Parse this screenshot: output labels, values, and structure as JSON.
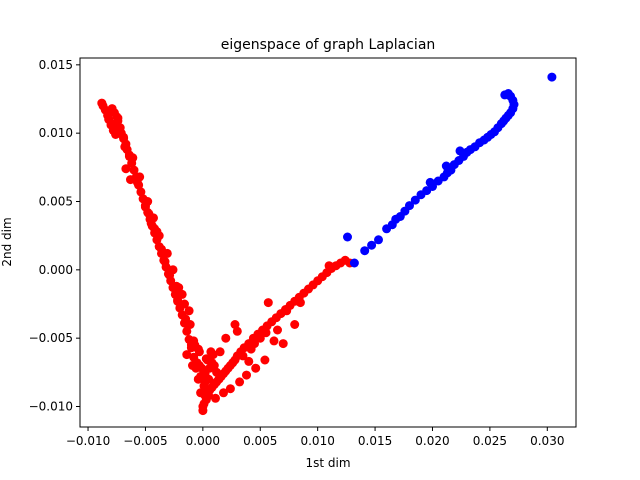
{
  "chart_data": {
    "type": "scatter",
    "title": "eigenspace of graph Laplacian",
    "xlabel": "1st dim",
    "ylabel": "2nd dim",
    "xlim": [
      -0.0107,
      0.0325
    ],
    "ylim": [
      -0.0115,
      0.0155
    ],
    "grid": false,
    "legend": "none",
    "x_ticks": [
      -0.01,
      -0.005,
      0.0,
      0.005,
      0.01,
      0.015,
      0.02,
      0.025,
      0.03
    ],
    "x_tick_labels": [
      "−0.010",
      "−0.005",
      "0.000",
      "0.005",
      "0.010",
      "0.015",
      "0.020",
      "0.025",
      "0.030"
    ],
    "y_ticks": [
      -0.01,
      -0.005,
      0.0,
      0.005,
      0.01,
      0.015
    ],
    "y_tick_labels": [
      "−0.010",
      "−0.005",
      "0.000",
      "0.005",
      "0.010",
      "0.015"
    ],
    "series": [
      {
        "color": "#ff0000",
        "x": [
          -0.0088,
          -0.0087,
          -0.0085,
          -0.0083,
          -0.0082,
          -0.008,
          -0.0078,
          -0.0076,
          -0.0079,
          -0.0077,
          -0.0075,
          -0.0074,
          -0.0072,
          -0.0071,
          -0.0069,
          -0.0067,
          -0.0066,
          -0.0064,
          -0.0062,
          -0.006,
          -0.0058,
          -0.0056,
          -0.0054,
          -0.0052,
          -0.005,
          -0.0048,
          -0.0046,
          -0.0044,
          -0.0042,
          -0.004,
          -0.0038,
          -0.0036,
          -0.0034,
          -0.0032,
          -0.003,
          -0.0028,
          -0.0026,
          -0.0024,
          -0.0022,
          -0.002,
          -0.0018,
          -0.0016,
          -0.0014,
          -0.0012,
          -0.001,
          -0.0008,
          -0.0006,
          -0.0004,
          -0.0002,
          0.0,
          -0.0074,
          -0.0069,
          -0.0061,
          -0.0055,
          -0.0048,
          -0.0043,
          -0.0038,
          -0.0031,
          -0.0026,
          -0.0021,
          -0.0016,
          -0.0011,
          -0.0007,
          -0.0003,
          -0.0076,
          -0.0073,
          -0.0068,
          -0.0064,
          -0.0057,
          -0.005,
          -0.0045,
          -0.0036,
          -0.0029,
          -0.0022,
          -0.0015,
          -0.0008,
          -0.0067,
          -0.0063,
          -0.0047,
          -0.0042,
          -0.004,
          -0.0033,
          -0.0023,
          -0.0018,
          -0.0012,
          -0.0004,
          0.0,
          0.0001,
          0.0003,
          0.0002,
          0.0004,
          0.0006,
          0.0008,
          0.001,
          0.0012,
          0.0014,
          0.0016,
          0.0018,
          0.002,
          0.0022,
          0.0024,
          0.0026,
          0.0028,
          0.003,
          0.0033,
          0.0036,
          0.004,
          0.0044,
          0.0048,
          0.0052,
          0.0056,
          0.006,
          0.0064,
          0.0068,
          0.0072,
          0.0076,
          0.008,
          0.0084,
          0.0088,
          0.0092,
          0.0096,
          0.01,
          0.0104,
          0.0108,
          0.0112,
          0.0116,
          0.012,
          0.0124,
          0.0085,
          0.011,
          0.0128,
          0.0057,
          0.0073,
          0.008,
          0.0065,
          0.0055,
          0.005,
          0.0045,
          0.0042,
          0.0028,
          0.003,
          0.002,
          0.0035,
          0.004,
          0.0062,
          0.0015,
          0.001,
          0.0012,
          0.0005,
          0.0006,
          0.0008,
          0.0001,
          0.0002,
          -0.0002,
          -0.0001,
          0.0003,
          0.0007,
          0.0009,
          0.0004,
          0.0002,
          -0.0005,
          -0.0003,
          -0.001,
          -0.0014,
          -0.0009,
          0.0005,
          0.0011,
          0.0018,
          0.0024,
          0.0032,
          0.0038,
          0.0046,
          0.0054,
          0.007
        ],
        "y": [
          0.0122,
          0.012,
          0.0117,
          0.0113,
          0.011,
          0.0106,
          0.0102,
          0.0099,
          0.0118,
          0.0115,
          0.0112,
          0.0109,
          0.0104,
          0.01,
          0.0096,
          0.0092,
          0.0088,
          0.0083,
          0.0078,
          0.0073,
          0.0068,
          0.0062,
          0.0057,
          0.0052,
          0.0047,
          0.0042,
          0.0037,
          0.0032,
          0.0027,
          0.0022,
          0.0017,
          0.0012,
          0.0007,
          0.0002,
          -0.0003,
          -0.0008,
          -0.0013,
          -0.0018,
          -0.0023,
          -0.0028,
          -0.0033,
          -0.0039,
          -0.0045,
          -0.0051,
          -0.0057,
          -0.0064,
          -0.0072,
          -0.008,
          -0.009,
          -0.01,
          0.0111,
          0.0097,
          0.0082,
          0.0068,
          0.005,
          0.0038,
          0.0025,
          0.0012,
          0.0,
          -0.0013,
          -0.0025,
          -0.004,
          -0.0055,
          -0.007,
          0.0107,
          0.01,
          0.009,
          0.0084,
          0.0064,
          0.0046,
          0.0034,
          0.0015,
          -0.0004,
          -0.0022,
          -0.0036,
          -0.0052,
          0.0074,
          0.0066,
          0.0041,
          0.003,
          0.0028,
          0.0006,
          -0.0012,
          -0.0018,
          -0.003,
          -0.0058,
          -0.0103,
          -0.0098,
          -0.0095,
          -0.0092,
          -0.009,
          -0.0088,
          -0.0086,
          -0.0084,
          -0.0082,
          -0.008,
          -0.0078,
          -0.0076,
          -0.0074,
          -0.0072,
          -0.007,
          -0.0068,
          -0.0066,
          -0.0063,
          -0.006,
          -0.0057,
          -0.0054,
          -0.005,
          -0.0047,
          -0.0044,
          -0.0041,
          -0.0038,
          -0.0035,
          -0.0032,
          -0.0029,
          -0.0026,
          -0.0023,
          -0.002,
          -0.0017,
          -0.0014,
          -0.0011,
          -0.0008,
          -0.0005,
          -0.0002,
          0.0001,
          0.0003,
          0.0005,
          0.0007,
          -0.0024,
          0.0003,
          0.0005,
          -0.0024,
          -0.003,
          -0.004,
          -0.0044,
          -0.0046,
          -0.005,
          -0.0054,
          -0.0058,
          -0.004,
          -0.0045,
          -0.005,
          -0.0063,
          -0.0067,
          -0.0052,
          -0.006,
          -0.007,
          -0.0075,
          -0.008,
          -0.0072,
          -0.0068,
          -0.0085,
          -0.0082,
          -0.0078,
          -0.0072,
          -0.0065,
          -0.006,
          -0.0062,
          -0.0066,
          -0.0076,
          -0.0068,
          -0.006,
          -0.0055,
          -0.0062,
          -0.007,
          -0.0092,
          -0.0094,
          -0.009,
          -0.0087,
          -0.0082,
          -0.0077,
          -0.0072,
          -0.0066,
          -0.0054
        ]
      },
      {
        "color": "#0000ff",
        "x": [
          0.0304,
          0.0263,
          0.0266,
          0.0268,
          0.027,
          0.0271,
          0.027,
          0.0268,
          0.0266,
          0.0264,
          0.0262,
          0.026,
          0.0257,
          0.0254,
          0.0251,
          0.0248,
          0.0245,
          0.0241,
          0.0237,
          0.0233,
          0.023,
          0.0227,
          0.0223,
          0.0219,
          0.0216,
          0.0213,
          0.021,
          0.0205,
          0.02,
          0.0195,
          0.019,
          0.0185,
          0.018,
          0.0176,
          0.0172,
          0.0168,
          0.0165,
          0.016,
          0.0153,
          0.0147,
          0.0141,
          0.0126,
          0.0132,
          0.0198,
          0.0212,
          0.0224
        ],
        "y": [
          0.0141,
          0.0128,
          0.0129,
          0.0127,
          0.0124,
          0.0121,
          0.0118,
          0.0115,
          0.0113,
          0.0111,
          0.0109,
          0.0107,
          0.0104,
          0.0101,
          0.0099,
          0.0097,
          0.0095,
          0.0093,
          0.009,
          0.0088,
          0.0086,
          0.0083,
          0.008,
          0.0077,
          0.0073,
          0.0071,
          0.0068,
          0.0065,
          0.0061,
          0.0058,
          0.0055,
          0.0051,
          0.0047,
          0.0043,
          0.0039,
          0.0037,
          0.0033,
          0.003,
          0.0022,
          0.0018,
          0.0014,
          0.0024,
          0.0005,
          0.0064,
          0.0076,
          0.0087
        ]
      }
    ]
  }
}
